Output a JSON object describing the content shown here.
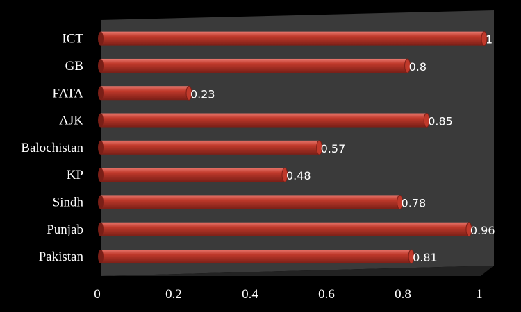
{
  "chart_data": {
    "type": "bar",
    "orientation": "horizontal",
    "categories": [
      "ICT",
      "GB",
      "FATA",
      "AJK",
      "Balochistan",
      "KP",
      "Sindh",
      "Punjab",
      "Pakistan"
    ],
    "values": [
      1,
      0.8,
      0.23,
      0.85,
      0.57,
      0.48,
      0.78,
      0.96,
      0.81
    ],
    "data_labels": [
      "1",
      "0.8",
      "0.23",
      "0.85",
      "0.57",
      "0.48",
      "0.78",
      "0.96",
      "0.81"
    ],
    "x_ticks": [
      "0",
      "0.2",
      "0.4",
      "0.6",
      "0.8",
      "1"
    ],
    "xlim": [
      0,
      1
    ],
    "title": "",
    "xlabel": "",
    "ylabel": "",
    "grid": false,
    "legend": "none",
    "colors": {
      "background": "#000000",
      "plot_area": "#3a3a3a",
      "bar": "#c0392b",
      "bar_highlight": "#e8776d",
      "bar_shadow": "#7a1f17",
      "text": "#ffffff"
    }
  }
}
